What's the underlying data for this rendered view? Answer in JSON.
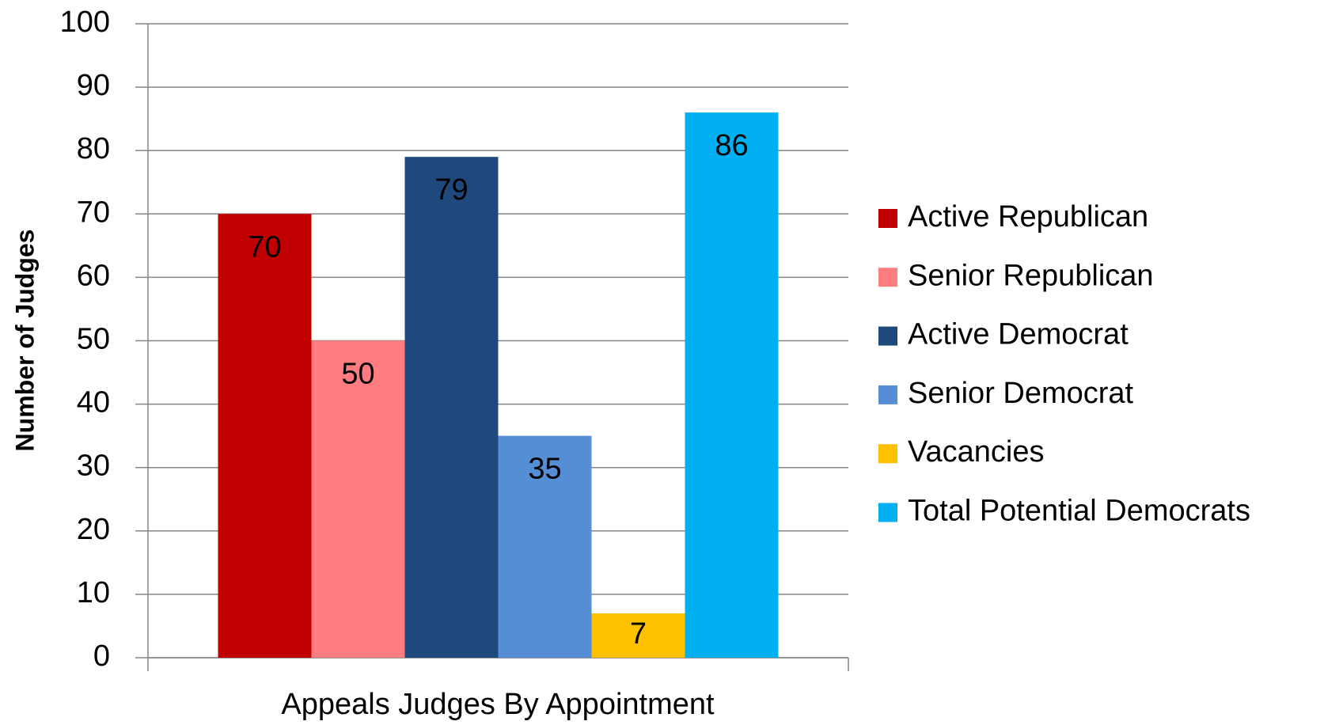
{
  "chart_data": {
    "type": "bar",
    "xlabel": "Appeals Judges By Appointment",
    "ylabel": "Number of Judges",
    "categories": [
      "Appeals Judges By Appointment"
    ],
    "series": [
      {
        "name": "Active Republican",
        "color": "#c00000",
        "values": [
          70
        ]
      },
      {
        "name": "Senior Republican",
        "color": "#ff7c80",
        "values": [
          50
        ]
      },
      {
        "name": "Active Democrat",
        "color": "#1f497d",
        "values": [
          79
        ]
      },
      {
        "name": "Senior Democrat",
        "color": "#558ed5",
        "values": [
          35
        ]
      },
      {
        "name": "Vacancies",
        "color": "#ffc000",
        "values": [
          7
        ]
      },
      {
        "name": "Total Potential Democrats",
        "color": "#00b0f0",
        "values": [
          86
        ]
      }
    ],
    "ylim": [
      0,
      100
    ],
    "yticks": [
      0,
      10,
      20,
      30,
      40,
      50,
      60,
      70,
      80,
      90,
      100
    ],
    "grid": true,
    "legend": "right",
    "data_labels": true
  }
}
